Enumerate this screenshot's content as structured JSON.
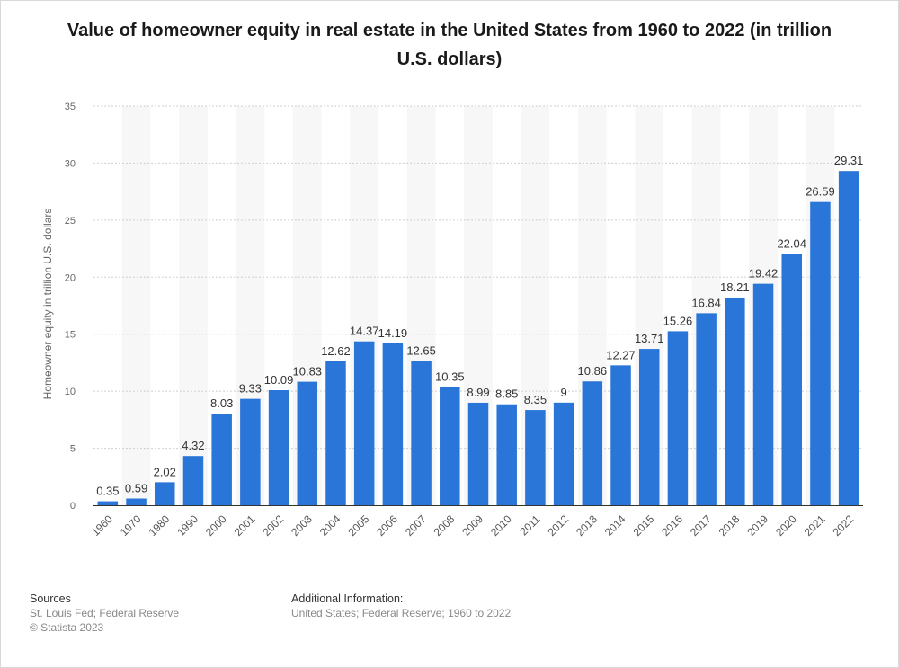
{
  "chart_data": {
    "type": "bar",
    "title": "Value of homeowner equity in real estate in the United States from 1960 to 2022 (in trillion U.S. dollars)",
    "xlabel": "",
    "ylabel": "Homeowner equity in trillion U.S. dollars",
    "ylim": [
      0,
      35
    ],
    "yticks": [
      0,
      5,
      10,
      15,
      20,
      25,
      30,
      35
    ],
    "grid": true,
    "bar_color": "#2a75d8",
    "categories": [
      "1960",
      "1970",
      "1980",
      "1990",
      "2000",
      "2001",
      "2002",
      "2003",
      "2004",
      "2005",
      "2006",
      "2007",
      "2008",
      "2009",
      "2010",
      "2011",
      "2012",
      "2013",
      "2014",
      "2015",
      "2016",
      "2017",
      "2018",
      "2019",
      "2020",
      "2021",
      "2022"
    ],
    "values": [
      0.35,
      0.59,
      2.02,
      4.32,
      8.03,
      9.33,
      10.09,
      10.83,
      12.62,
      14.37,
      14.19,
      12.65,
      10.35,
      8.99,
      8.85,
      8.35,
      9,
      10.86,
      12.27,
      13.71,
      15.26,
      16.84,
      18.21,
      19.42,
      22.04,
      26.59,
      29.31
    ],
    "value_labels": [
      "0.35",
      "0.59",
      "2.02",
      "4.32",
      "8.03",
      "9.33",
      "10.09",
      "10.83",
      "12.62",
      "14.37",
      "14.19",
      "12.65",
      "10.35",
      "8.99",
      "8.85",
      "8.35",
      "9",
      "10.86",
      "12.27",
      "13.71",
      "15.26",
      "16.84",
      "18.21",
      "19.42",
      "22.04",
      "26.59",
      "29.31"
    ]
  },
  "footer": {
    "sources_heading": "Sources",
    "sources_line1": "St. Louis Fed; Federal Reserve",
    "sources_line2": "© Statista 2023",
    "info_heading": "Additional Information:",
    "info_line": "United States; Federal Reserve; 1960 to 2022"
  }
}
